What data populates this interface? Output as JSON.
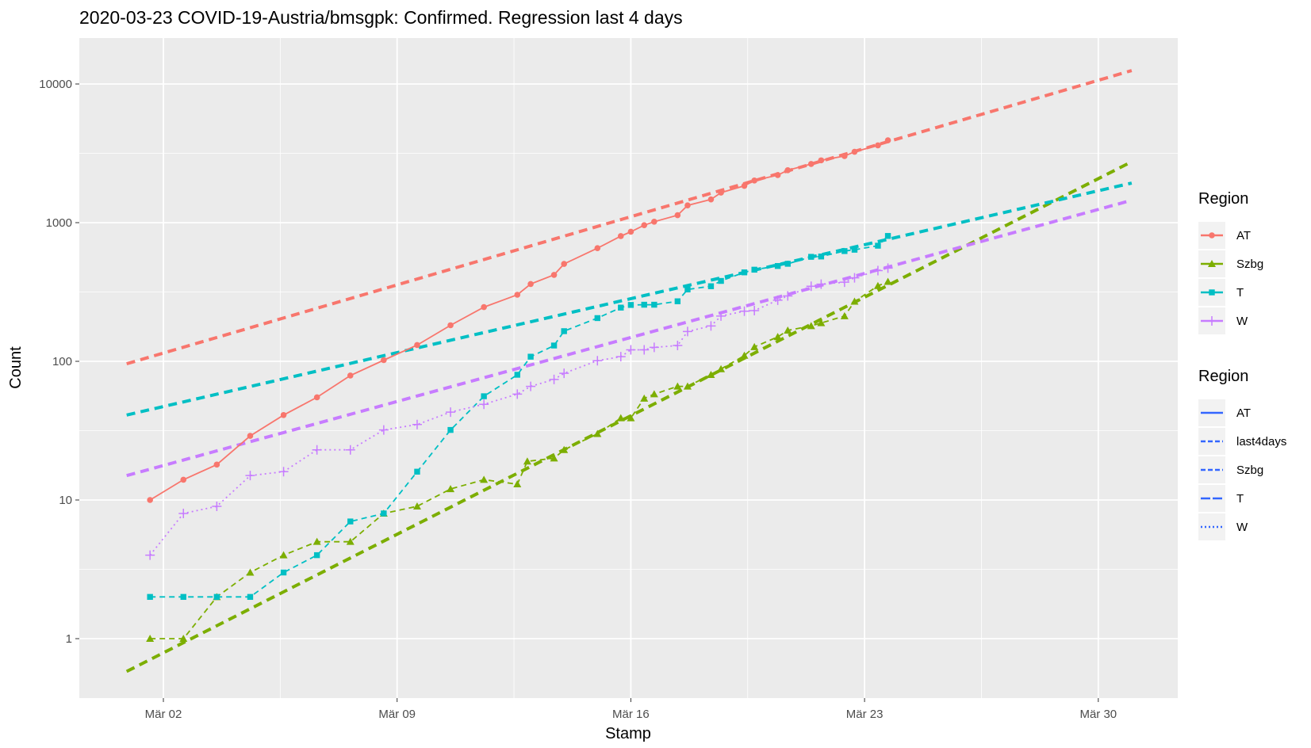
{
  "chart_data": {
    "type": "line",
    "title": "2020-03-23 COVID-19-Austria/bmsgpk: Confirmed. Regression last  4  days",
    "xlabel": "Stamp",
    "ylabel": "Count",
    "y_scale": "log10",
    "y_ticks": [
      "1",
      "10",
      "100",
      "1000",
      "10000"
    ],
    "x_ticks": [
      {
        "label": "Mär 02",
        "day": 2
      },
      {
        "label": "Mär 09",
        "day": 9
      },
      {
        "label": "Mär 16",
        "day": 16
      },
      {
        "label": "Mär 23",
        "day": 23
      },
      {
        "label": "Mär 30",
        "day": 30
      }
    ],
    "grid": true,
    "series": [
      {
        "name": "AT",
        "color": "#F8766D",
        "marker": "circle",
        "linestyle": "solid",
        "points": [
          [
            1.6,
            10
          ],
          [
            2.6,
            14
          ],
          [
            3.6,
            18
          ],
          [
            4.6,
            29
          ],
          [
            5.6,
            41
          ],
          [
            6.6,
            55
          ],
          [
            7.6,
            79
          ],
          [
            8.6,
            102
          ],
          [
            9.6,
            131
          ],
          [
            10.6,
            182
          ],
          [
            11.6,
            246
          ],
          [
            12.6,
            302
          ],
          [
            13.0,
            361
          ],
          [
            13.7,
            420
          ],
          [
            14.0,
            504
          ],
          [
            15.0,
            655
          ],
          [
            15.7,
            800
          ],
          [
            16.0,
            860
          ],
          [
            16.4,
            959
          ],
          [
            16.7,
            1016
          ],
          [
            17.4,
            1132
          ],
          [
            17.7,
            1332
          ],
          [
            18.4,
            1471
          ],
          [
            18.7,
            1646
          ],
          [
            19.4,
            1843
          ],
          [
            19.7,
            2013
          ],
          [
            20.4,
            2203
          ],
          [
            20.7,
            2388
          ],
          [
            21.4,
            2649
          ],
          [
            21.7,
            2814
          ],
          [
            22.4,
            3024
          ],
          [
            22.7,
            3244
          ],
          [
            23.4,
            3611
          ],
          [
            23.7,
            3924
          ]
        ]
      },
      {
        "name": "Szbg",
        "color": "#7CAE00",
        "marker": "triangle",
        "linestyle": "dashed",
        "points": [
          [
            1.6,
            1
          ],
          [
            2.6,
            1
          ],
          [
            3.6,
            2
          ],
          [
            4.6,
            3
          ],
          [
            5.6,
            4
          ],
          [
            6.6,
            5
          ],
          [
            7.6,
            5
          ],
          [
            8.6,
            8
          ],
          [
            9.6,
            9
          ],
          [
            10.6,
            12
          ],
          [
            11.6,
            14
          ],
          [
            12.6,
            13
          ],
          [
            12.9,
            19
          ],
          [
            13.7,
            20
          ],
          [
            14.0,
            23
          ],
          [
            15.0,
            30
          ],
          [
            15.7,
            39
          ],
          [
            16.0,
            39
          ],
          [
            16.4,
            54
          ],
          [
            16.7,
            58
          ],
          [
            17.4,
            66
          ],
          [
            17.7,
            66
          ],
          [
            18.4,
            80
          ],
          [
            18.7,
            88
          ],
          [
            19.4,
            110
          ],
          [
            19.7,
            127
          ],
          [
            20.4,
            150
          ],
          [
            20.7,
            167
          ],
          [
            21.4,
            180
          ],
          [
            21.7,
            189
          ],
          [
            22.4,
            212
          ],
          [
            22.7,
            270
          ],
          [
            23.4,
            350
          ],
          [
            23.7,
            375
          ]
        ]
      },
      {
        "name": "T",
        "color": "#00BFC4",
        "marker": "square",
        "linestyle": "dashed",
        "points": [
          [
            1.6,
            2
          ],
          [
            2.6,
            2
          ],
          [
            3.6,
            2
          ],
          [
            4.6,
            2
          ],
          [
            5.6,
            3
          ],
          [
            6.6,
            4
          ],
          [
            7.6,
            7
          ],
          [
            8.6,
            8
          ],
          [
            9.6,
            16
          ],
          [
            10.6,
            32
          ],
          [
            11.6,
            56
          ],
          [
            12.6,
            80
          ],
          [
            13.0,
            108
          ],
          [
            13.7,
            130
          ],
          [
            14.0,
            165
          ],
          [
            15.0,
            205
          ],
          [
            15.7,
            244
          ],
          [
            16.0,
            255
          ],
          [
            16.4,
            256
          ],
          [
            16.7,
            256
          ],
          [
            17.4,
            271
          ],
          [
            17.7,
            330
          ],
          [
            18.4,
            348
          ],
          [
            18.7,
            380
          ],
          [
            19.4,
            438
          ],
          [
            19.7,
            458
          ],
          [
            20.4,
            487
          ],
          [
            20.7,
            505
          ],
          [
            21.4,
            567
          ],
          [
            21.7,
            570
          ],
          [
            22.4,
            624
          ],
          [
            22.7,
            638
          ],
          [
            23.4,
            682
          ],
          [
            23.7,
            802
          ]
        ]
      },
      {
        "name": "W",
        "color": "#C77CFF",
        "marker": "plus",
        "linestyle": "dotted",
        "points": [
          [
            1.6,
            4
          ],
          [
            2.6,
            8
          ],
          [
            3.6,
            9
          ],
          [
            4.6,
            15
          ],
          [
            5.6,
            16
          ],
          [
            6.6,
            23
          ],
          [
            7.6,
            23
          ],
          [
            8.6,
            32
          ],
          [
            9.6,
            35
          ],
          [
            10.6,
            43
          ],
          [
            11.6,
            49
          ],
          [
            12.6,
            58
          ],
          [
            13.0,
            66
          ],
          [
            13.7,
            74
          ],
          [
            14.0,
            82
          ],
          [
            15.0,
            101
          ],
          [
            15.7,
            108
          ],
          [
            16.0,
            121
          ],
          [
            16.4,
            121
          ],
          [
            16.7,
            126
          ],
          [
            17.4,
            130
          ],
          [
            17.7,
            164
          ],
          [
            18.4,
            180
          ],
          [
            18.7,
            212
          ],
          [
            19.4,
            230
          ],
          [
            19.7,
            232
          ],
          [
            20.4,
            276
          ],
          [
            20.7,
            296
          ],
          [
            21.4,
            348
          ],
          [
            21.7,
            360
          ],
          [
            22.4,
            372
          ],
          [
            22.7,
            400
          ],
          [
            23.4,
            451
          ],
          [
            23.7,
            470
          ]
        ]
      }
    ],
    "regression_lines": [
      {
        "region": "AT",
        "color": "#F8766D",
        "start": [
          0.9,
          96
        ],
        "end": [
          31.0,
          12500
        ]
      },
      {
        "region": "Szbg",
        "color": "#7CAE00",
        "start": [
          0.9,
          0.58
        ],
        "end": [
          31.0,
          2750
        ]
      },
      {
        "region": "T",
        "color": "#00BFC4",
        "start": [
          0.9,
          41
        ],
        "end": [
          31.0,
          1930
        ]
      },
      {
        "region": "W",
        "color": "#C77CFF",
        "start": [
          0.9,
          15
        ],
        "end": [
          31.0,
          1450
        ]
      }
    ],
    "legend_placement": "right",
    "legends": [
      {
        "title": "Region",
        "entries": [
          {
            "label": "AT",
            "color": "#F8766D",
            "marker": "circle",
            "linestyle": "solid"
          },
          {
            "label": "Szbg",
            "color": "#7CAE00",
            "marker": "triangle",
            "linestyle": "solid"
          },
          {
            "label": "T",
            "color": "#00BFC4",
            "marker": "square",
            "linestyle": "solid"
          },
          {
            "label": "W",
            "color": "#C77CFF",
            "marker": "plus",
            "linestyle": "solid"
          }
        ]
      },
      {
        "title": "Region",
        "entries": [
          {
            "label": "AT",
            "color": "#3366FF",
            "linestyle": "solid"
          },
          {
            "label": "last4days",
            "color": "#3366FF",
            "linestyle": "dashed"
          },
          {
            "label": "Szbg",
            "color": "#3366FF",
            "linestyle": "dashed"
          },
          {
            "label": "T",
            "color": "#3366FF",
            "linestyle": "longdash"
          },
          {
            "label": "W",
            "color": "#3366FF",
            "linestyle": "dotted"
          }
        ]
      }
    ]
  }
}
